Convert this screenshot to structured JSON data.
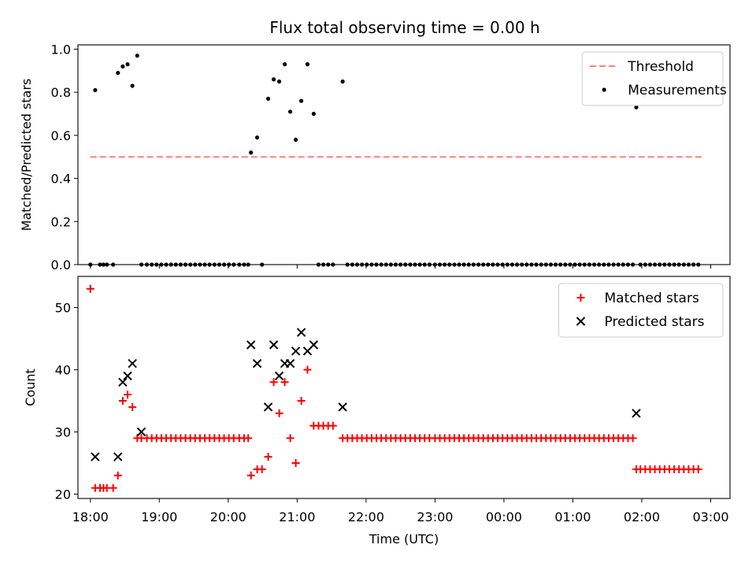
{
  "title": "Flux total observing time = 0.00 h",
  "chart_data": [
    {
      "type": "scatter",
      "ylabel": "Matched/Predicted stars",
      "xlim": [
        -0.18,
        9.28
      ],
      "ylim": [
        0.0,
        1.02
      ],
      "y_ticks": [
        0.0,
        0.2,
        0.4,
        0.6,
        0.8,
        1.0
      ],
      "y_tick_labels": [
        "0.0",
        "0.2",
        "0.4",
        "0.6",
        "0.8",
        "1.0"
      ],
      "legend_position": "top-right",
      "threshold": {
        "name": "Threshold",
        "y": 0.5,
        "x_range": [
          0.0,
          8.87
        ],
        "color": "#ff7f7f",
        "style": "dashed"
      },
      "series": [
        {
          "name": "Measurements",
          "color": "#000000",
          "marker": "dot",
          "x": [
            0.0,
            0.07,
            0.14,
            0.19,
            0.24,
            0.33,
            0.4,
            0.47,
            0.54,
            0.61,
            0.68,
            0.74,
            0.82,
            0.89,
            0.96,
            1.03,
            1.1,
            1.17,
            1.24,
            1.31,
            1.38,
            1.45,
            1.52,
            1.59,
            1.66,
            1.73,
            1.8,
            1.87,
            1.94,
            2.01,
            2.08,
            2.16,
            2.23,
            2.29,
            2.33,
            2.42,
            2.49,
            2.58,
            2.66,
            2.74,
            2.82,
            2.9,
            2.98,
            3.06,
            3.15,
            3.24,
            3.31,
            3.38,
            3.45,
            3.52,
            3.66,
            3.73,
            3.8,
            3.87,
            3.94,
            4.01,
            4.08,
            4.15,
            4.22,
            4.29,
            4.36,
            4.43,
            4.5,
            4.57,
            4.64,
            4.71,
            4.78,
            4.85,
            4.92,
            5.0,
            5.07,
            5.14,
            5.21,
            5.28,
            5.35,
            5.42,
            5.49,
            5.56,
            5.63,
            5.7,
            5.77,
            5.84,
            5.91,
            5.98,
            6.05,
            6.12,
            6.19,
            6.26,
            6.33,
            6.4,
            6.47,
            6.54,
            6.61,
            6.68,
            6.75,
            6.82,
            6.89,
            6.96,
            7.03,
            7.1,
            7.17,
            7.24,
            7.31,
            7.38,
            7.45,
            7.52,
            7.59,
            7.66,
            7.73,
            7.8,
            7.87,
            7.92,
            7.98,
            8.05,
            8.12,
            8.19,
            8.26,
            8.33,
            8.4,
            8.47,
            8.54,
            8.61,
            8.68,
            8.75,
            8.82
          ],
          "y": [
            0.0,
            0.81,
            0.0,
            0.0,
            0.0,
            0.0,
            0.89,
            0.92,
            0.93,
            0.83,
            0.97,
            0.0,
            0.0,
            0.0,
            0.0,
            0.0,
            0.0,
            0.0,
            0.0,
            0.0,
            0.0,
            0.0,
            0.0,
            0.0,
            0.0,
            0.0,
            0.0,
            0.0,
            0.0,
            0.0,
            0.0,
            0.0,
            0.0,
            0.0,
            0.52,
            0.59,
            0.0,
            0.77,
            0.86,
            0.85,
            0.93,
            0.71,
            0.58,
            0.76,
            0.93,
            0.7,
            0.0,
            0.0,
            0.0,
            0.0,
            0.85,
            0.0,
            0.0,
            0.0,
            0.0,
            0.0,
            0.0,
            0.0,
            0.0,
            0.0,
            0.0,
            0.0,
            0.0,
            0.0,
            0.0,
            0.0,
            0.0,
            0.0,
            0.0,
            0.0,
            0.0,
            0.0,
            0.0,
            0.0,
            0.0,
            0.0,
            0.0,
            0.0,
            0.0,
            0.0,
            0.0,
            0.0,
            0.0,
            0.0,
            0.0,
            0.0,
            0.0,
            0.0,
            0.0,
            0.0,
            0.0,
            0.0,
            0.0,
            0.0,
            0.0,
            0.0,
            0.0,
            0.0,
            0.0,
            0.0,
            0.0,
            0.0,
            0.0,
            0.0,
            0.0,
            0.0,
            0.0,
            0.0,
            0.0,
            0.0,
            0.0,
            0.73,
            0.0,
            0.0,
            0.0,
            0.0,
            0.0,
            0.0,
            0.0,
            0.0,
            0.0,
            0.0,
            0.0,
            0.0,
            0.0
          ]
        }
      ]
    },
    {
      "type": "scatter",
      "xlabel": "Time (UTC)",
      "ylabel": "Count",
      "xlim": [
        -0.18,
        9.28
      ],
      "ylim": [
        19.3,
        55.0
      ],
      "y_ticks": [
        20,
        30,
        40,
        50
      ],
      "y_tick_labels": [
        "20",
        "30",
        "40",
        "50"
      ],
      "x_ticks": [
        0,
        1,
        2,
        3,
        4,
        5,
        6,
        7,
        8,
        9
      ],
      "x_tick_labels": [
        "18:00",
        "19:00",
        "20:00",
        "21:00",
        "22:00",
        "23:00",
        "00:00",
        "01:00",
        "02:00",
        "03:00"
      ],
      "legend_position": "top-right",
      "series": [
        {
          "name": "Matched stars",
          "color": "#ff0000",
          "marker": "plus",
          "x": [
            0.0,
            0.07,
            0.14,
            0.19,
            0.24,
            0.33,
            0.4,
            0.47,
            0.54,
            0.61,
            0.68,
            0.74,
            0.82,
            0.89,
            0.96,
            1.03,
            1.1,
            1.17,
            1.24,
            1.31,
            1.38,
            1.45,
            1.52,
            1.59,
            1.66,
            1.73,
            1.8,
            1.87,
            1.94,
            2.01,
            2.08,
            2.16,
            2.23,
            2.29,
            2.33,
            2.42,
            2.49,
            2.58,
            2.66,
            2.74,
            2.82,
            2.9,
            2.98,
            3.06,
            3.15,
            3.24,
            3.31,
            3.38,
            3.45,
            3.52,
            3.66,
            3.73,
            3.8,
            3.87,
            3.94,
            4.01,
            4.08,
            4.15,
            4.22,
            4.29,
            4.36,
            4.43,
            4.5,
            4.57,
            4.64,
            4.71,
            4.78,
            4.85,
            4.92,
            5.0,
            5.07,
            5.14,
            5.21,
            5.28,
            5.35,
            5.42,
            5.49,
            5.56,
            5.63,
            5.7,
            5.77,
            5.84,
            5.91,
            5.98,
            6.05,
            6.12,
            6.19,
            6.26,
            6.33,
            6.4,
            6.47,
            6.54,
            6.61,
            6.68,
            6.75,
            6.82,
            6.89,
            6.96,
            7.03,
            7.1,
            7.17,
            7.24,
            7.31,
            7.38,
            7.45,
            7.52,
            7.59,
            7.66,
            7.73,
            7.8,
            7.87,
            7.92,
            7.98,
            8.05,
            8.12,
            8.19,
            8.26,
            8.33,
            8.4,
            8.47,
            8.54,
            8.61,
            8.68,
            8.75,
            8.82
          ],
          "y": [
            53,
            21,
            21,
            21,
            21,
            21,
            23,
            35,
            36,
            34,
            29,
            29,
            29,
            29,
            29,
            29,
            29,
            29,
            29,
            29,
            29,
            29,
            29,
            29,
            29,
            29,
            29,
            29,
            29,
            29,
            29,
            29,
            29,
            29,
            23,
            24,
            24,
            26,
            38,
            33,
            38,
            29,
            25,
            35,
            40,
            31,
            31,
            31,
            31,
            31,
            29,
            29,
            29,
            29,
            29,
            29,
            29,
            29,
            29,
            29,
            29,
            29,
            29,
            29,
            29,
            29,
            29,
            29,
            29,
            29,
            29,
            29,
            29,
            29,
            29,
            29,
            29,
            29,
            29,
            29,
            29,
            29,
            29,
            29,
            29,
            29,
            29,
            29,
            29,
            29,
            29,
            29,
            29,
            29,
            29,
            29,
            29,
            29,
            29,
            29,
            29,
            29,
            29,
            29,
            29,
            29,
            29,
            29,
            29,
            29,
            29,
            24,
            24,
            24,
            24,
            24,
            24,
            24,
            24,
            24,
            24,
            24,
            24,
            24,
            24
          ]
        },
        {
          "name": "Predicted stars",
          "color": "#000000",
          "marker": "x",
          "x": [
            0.07,
            0.4,
            0.47,
            0.54,
            0.61,
            0.74,
            2.33,
            2.42,
            2.58,
            2.66,
            2.74,
            2.82,
            2.9,
            2.98,
            3.06,
            3.15,
            3.24,
            3.66,
            7.92
          ],
          "y": [
            26,
            26,
            38,
            39,
            41,
            30,
            44,
            41,
            34,
            44,
            39,
            41,
            41,
            43,
            46,
            43,
            44,
            34,
            33
          ]
        }
      ]
    }
  ]
}
